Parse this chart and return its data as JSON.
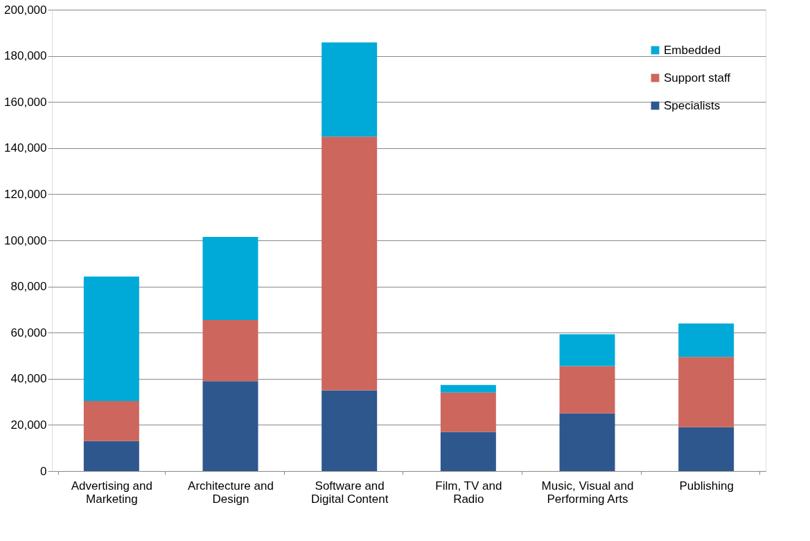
{
  "chart_data": {
    "type": "bar",
    "stacked": true,
    "categories": [
      "Advertising and Marketing",
      "Architecture and Design",
      "Software and Digital Content",
      "Film, TV and Radio",
      "Music, Visual and Performing Arts",
      "Publishing"
    ],
    "series": [
      {
        "name": "Specialists",
        "color": "#2e578e",
        "values": [
          13000,
          39000,
          35000,
          17000,
          25000,
          19000
        ]
      },
      {
        "name": "Support staff",
        "color": "#cd665d",
        "values": [
          17300,
          26500,
          110000,
          17000,
          20500,
          30500
        ]
      },
      {
        "name": "Embedded",
        "color": "#00aad8",
        "values": [
          54000,
          36000,
          40800,
          3300,
          13800,
          14500
        ]
      }
    ],
    "ylim": [
      0,
      200000
    ],
    "yticks": [
      0,
      {
        "value": 20000,
        "label": "20,000"
      },
      {
        "value": 40000,
        "label": "40,000"
      },
      {
        "value": 60000,
        "label": "60,000"
      },
      {
        "value": 80000,
        "label": "80,000"
      },
      {
        "value": 100000,
        "label": "100,000"
      },
      {
        "value": 120000,
        "label": "120,000"
      },
      {
        "value": 140000,
        "label": "140,000"
      },
      {
        "value": 160000,
        "label": "160,000"
      },
      {
        "value": 180000,
        "label": "180,000"
      },
      {
        "value": 200000,
        "label": "200,000"
      }
    ],
    "grid": "y",
    "legend": "top right"
  }
}
